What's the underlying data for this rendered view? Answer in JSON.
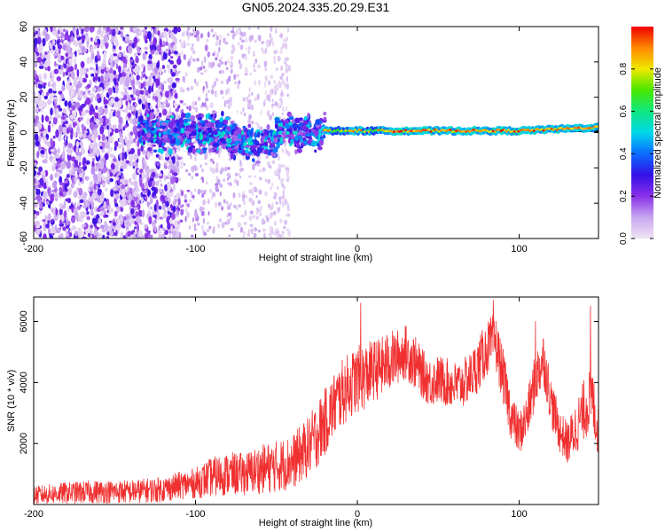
{
  "title": "GN05.2024.335.20.29.E31",
  "chart_data": [
    {
      "type": "heatmap",
      "xlabel": "Height of straight line (km)",
      "ylabel": "Frequency (Hz)",
      "xlim": [
        -200,
        149
      ],
      "ylim": [
        -60,
        60
      ],
      "xticks": [
        -200,
        -100,
        0,
        100
      ],
      "yticks": [
        -60,
        -40,
        -20,
        0,
        20,
        40,
        60
      ],
      "colorbar": {
        "label": "Normalized spectral amplitude",
        "range": [
          0,
          1
        ],
        "ticks": [
          0.0,
          0.2,
          0.4,
          0.6,
          0.8
        ],
        "colormap": [
          "#f0e4f4",
          "#c8a6f0",
          "#8a30e8",
          "#3410e6",
          "#0a6cff",
          "#00d8ea",
          "#10e880",
          "#48e800",
          "#f0e800",
          "#ff8800",
          "#f00000"
        ]
      },
      "regions": [
        {
          "x_range": [
            -200,
            -110
          ],
          "freq_range": [
            -60,
            60
          ],
          "amplitude": "0.1-0.3",
          "pattern": "dense noise"
        },
        {
          "x_range": [
            -110,
            -45
          ],
          "freq_range": [
            -60,
            60
          ],
          "amplitude": "0.0-0.15",
          "pattern": "sparse noise"
        },
        {
          "x_range": [
            -135,
            -20
          ],
          "freq_range": [
            -20,
            12
          ],
          "amplitude": "0.2-0.5",
          "pattern": "band"
        },
        {
          "x_range": [
            -20,
            149
          ],
          "freq_range": [
            -1,
            5
          ],
          "amplitude": "0.6-1.0",
          "pattern": "narrow line near 0-3 Hz"
        }
      ]
    },
    {
      "type": "line",
      "xlabel": "Height of straight line (km)",
      "ylabel": "SNR (10 * v/v)",
      "xlim": [
        -200,
        149
      ],
      "ylim": [
        0,
        6800
      ],
      "xticks": [
        -200,
        -100,
        0,
        100
      ],
      "yticks": [
        2000,
        4000,
        6000
      ],
      "color": "#f03030",
      "envelope": {
        "x": [
          -200,
          -180,
          -160,
          -140,
          -120,
          -110,
          -100,
          -90,
          -80,
          -70,
          -60,
          -50,
          -40,
          -30,
          -25,
          -20,
          -15,
          -10,
          -5,
          0,
          5,
          10,
          15,
          20,
          25,
          30,
          35,
          40,
          45,
          50,
          55,
          60,
          65,
          70,
          75,
          80,
          85,
          90,
          95,
          100,
          105,
          110,
          115,
          120,
          125,
          130,
          135,
          140,
          145,
          149
        ],
        "mean": [
          300,
          380,
          420,
          420,
          500,
          620,
          700,
          900,
          1000,
          1000,
          1150,
          1250,
          1400,
          1900,
          2300,
          2700,
          3200,
          3600,
          3900,
          4100,
          4200,
          4400,
          4500,
          4700,
          4850,
          5000,
          4700,
          4300,
          4000,
          4100,
          4000,
          3900,
          3950,
          4200,
          4600,
          5100,
          5400,
          4200,
          2900,
          2300,
          2900,
          4100,
          4800,
          3300,
          2400,
          2000,
          2500,
          3100,
          3500,
          2300
        ],
        "spread": [
          300,
          350,
          380,
          380,
          420,
          450,
          500,
          650,
          700,
          700,
          800,
          850,
          900,
          1000,
          1100,
          1100,
          1100,
          1100,
          1100,
          1100,
          1100,
          1000,
          1000,
          1000,
          900,
          900,
          900,
          800,
          800,
          800,
          800,
          800,
          800,
          800,
          900,
          900,
          900,
          900,
          800,
          700,
          800,
          900,
          900,
          800,
          700,
          700,
          900,
          1000,
          1100,
          800
        ]
      },
      "peaks": [
        {
          "x": 2,
          "y": 6600
        },
        {
          "x": 84,
          "y": 6700
        },
        {
          "x": 110,
          "y": 6000
        },
        {
          "x": 144,
          "y": 6500
        }
      ]
    }
  ]
}
